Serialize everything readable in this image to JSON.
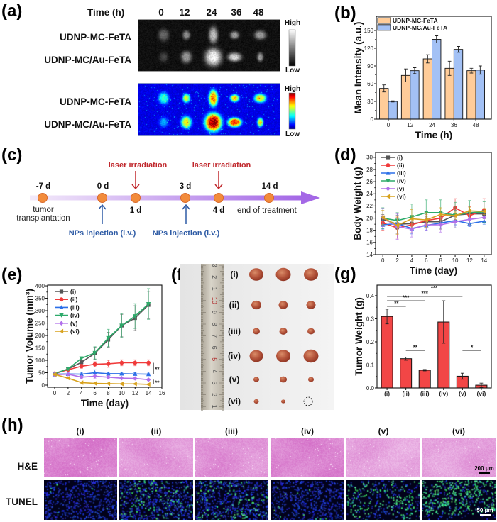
{
  "panels": {
    "a": {
      "label": "(a)",
      "time_label": "Time (h)",
      "times": [
        "0",
        "12",
        "24",
        "36",
        "48"
      ],
      "gray_rows": [
        "UDNP-MC-FeTA",
        "UDNP-MC/Au-FeTA"
      ],
      "color_rows": [
        "UDNP-MC-FeTA",
        "UDNP-MC/Au-FeTA"
      ],
      "gray_scale": {
        "high": "High",
        "low": "Low"
      },
      "color_scale": {
        "high": "High",
        "low": "Low"
      }
    },
    "b": {
      "label": "(b)"
    },
    "c": {
      "label": "(c)",
      "days_above": [
        "-7 d",
        "0 d",
        "3 d",
        "14 d"
      ],
      "days_below": [
        "1 d",
        "4 d"
      ],
      "laser": [
        "laser irradiation",
        "laser irradiation"
      ],
      "injection": [
        "NPs injection (i.v.)",
        "NPs injection (i.v.)"
      ],
      "start_note": [
        "tumor",
        "transplantation"
      ],
      "end_note": "end of treatment"
    },
    "d": {
      "label": "(d)"
    },
    "e": {
      "label": "(e)"
    },
    "f": {
      "label": "(f)",
      "groups": [
        "(i)",
        "(ii)",
        "(iii)",
        "(iv)",
        "(v)",
        "(vi)"
      ],
      "ruler": [
        "3",
        "2",
        "1",
        "10",
        "9",
        "8",
        "7",
        "6",
        "5",
        "4",
        "3",
        "2",
        "1"
      ]
    },
    "g": {
      "label": "(g)"
    },
    "h": {
      "label": "(h)",
      "columns": [
        "(i)",
        "(ii)",
        "(iii)",
        "(iv)",
        "(v)",
        "(vi)"
      ],
      "rows": [
        "H&E",
        "TUNEL"
      ],
      "scale_he": "200 μm",
      "scale_tunel": "50 μm"
    }
  },
  "chart_data": [
    {
      "type": "bar",
      "title": "",
      "xlabel": "Time (h)",
      "ylabel": "Mean Intensity (a.u.)",
      "categories": [
        "0",
        "12",
        "24",
        "36",
        "48"
      ],
      "series": [
        {
          "name": "UDNP-MC-FeTA",
          "color": "#FFCC99",
          "values": [
            52,
            74,
            102,
            86,
            82
          ],
          "errors": [
            6,
            11,
            7,
            12,
            4
          ]
        },
        {
          "name": "UDNP-MC/Au-FeTA",
          "color": "#A3C1F5",
          "values": [
            30,
            82,
            135,
            118,
            83
          ],
          "errors": [
            1,
            5,
            6,
            5,
            7
          ]
        }
      ],
      "yticks": [
        "0",
        "30",
        "60",
        "90",
        "120",
        "150"
      ],
      "ylim": [
        0,
        174
      ],
      "grid": false,
      "legend": "top-left"
    },
    {
      "type": "line",
      "title": "",
      "xlabel": "Time (day)",
      "ylabel": "Body Weight (g)",
      "x": [
        0,
        2,
        4,
        6,
        8,
        10,
        12,
        14
      ],
      "xticks": [
        "0",
        "2",
        "4",
        "6",
        "8",
        "10",
        "12",
        "14"
      ],
      "yticks": [
        "14",
        "16",
        "18",
        "20",
        "22",
        "24",
        "26",
        "28",
        "30"
      ],
      "xlim": [
        -1,
        15
      ],
      "ylim": [
        14,
        30.8
      ],
      "grid": false,
      "legend": "top-left",
      "series": [
        {
          "name": "(i)",
          "color": "#555555",
          "marker": "square",
          "values": [
            19.8,
            19.0,
            19.1,
            19.4,
            19.4,
            20.5,
            20.7,
            20.7
          ],
          "errors": [
            0.8,
            1.5,
            1.0,
            0.8,
            1.2,
            0.8,
            0.8,
            0.8
          ]
        },
        {
          "name": "(ii)",
          "color": "#F03A3A",
          "marker": "circle",
          "values": [
            19.2,
            18.4,
            18.9,
            19.6,
            20.0,
            21.7,
            20.4,
            21.3
          ],
          "errors": [
            1.2,
            1.7,
            1.3,
            1.0,
            1.0,
            1.5,
            1.5,
            1.9
          ]
        },
        {
          "name": "(iii)",
          "color": "#2B6FE8",
          "marker": "triangle-up",
          "values": [
            18.9,
            19.1,
            18.3,
            18.8,
            19.2,
            19.6,
            19.1,
            19.5
          ],
          "errors": [
            0.7,
            0.9,
            0.9,
            0.8,
            0.8,
            0.7,
            0.5,
            0.5
          ]
        },
        {
          "name": "(iv)",
          "color": "#2DAA6A",
          "marker": "triangle-down",
          "values": [
            20.0,
            19.6,
            20.2,
            20.9,
            20.9,
            20.5,
            20.9,
            21.0
          ],
          "errors": [
            1.7,
            1.3,
            2.1,
            2.1,
            2.1,
            2.1,
            2.0,
            1.7
          ]
        },
        {
          "name": "(v)",
          "color": "#B16FEA",
          "marker": "diamond",
          "values": [
            20.1,
            18.6,
            18.2,
            18.9,
            18.9,
            19.4,
            19.8,
            20.1
          ],
          "errors": [
            1.5,
            2.1,
            1.3,
            0.9,
            1.2,
            1.0,
            1.0,
            0.9
          ]
        },
        {
          "name": "(vi)",
          "color": "#D8A21E",
          "marker": "triangle-left",
          "values": [
            20.1,
            18.8,
            19.9,
            19.7,
            20.6,
            20.4,
            21.2,
            21.1
          ],
          "errors": [
            1.2,
            1.5,
            1.5,
            1.2,
            1.1,
            0.6,
            0.6,
            0.5
          ]
        }
      ]
    },
    {
      "type": "line",
      "title": "",
      "xlabel": "Time (day)",
      "ylabel": "Tumor Volume (mm³)",
      "x": [
        0,
        2,
        4,
        6,
        8,
        10,
        12,
        14
      ],
      "xticks": [
        "0",
        "2",
        "4",
        "6",
        "8",
        "10",
        "12",
        "14",
        "16"
      ],
      "yticks": [
        "0",
        "50",
        "100",
        "150",
        "200",
        "250",
        "300",
        "350",
        "400"
      ],
      "xlim": [
        -1.06,
        16
      ],
      "ylim": [
        -8.6,
        403
      ],
      "grid": false,
      "legend": "top-left",
      "series": [
        {
          "name": "(i)",
          "color": "#555555",
          "marker": "square",
          "values": [
            45,
            65,
            92,
            128,
            183,
            240,
            270,
            323
          ],
          "errors": [
            5,
            5,
            8,
            25,
            30,
            45,
            50,
            55
          ]
        },
        {
          "name": "(ii)",
          "color": "#F03A3A",
          "marker": "circle",
          "values": [
            47,
            62,
            76,
            84,
            86,
            90,
            90,
            90
          ],
          "errors": [
            4,
            5,
            8,
            10,
            14,
            12,
            12,
            12
          ]
        },
        {
          "name": "(iii)",
          "color": "#2B6FE8",
          "marker": "triangle-up",
          "values": [
            44,
            45,
            44,
            50,
            46,
            46,
            45,
            44
          ],
          "errors": [
            8,
            4,
            5,
            12,
            5,
            5,
            5,
            4
          ]
        },
        {
          "name": "(iv)",
          "color": "#2DAA6A",
          "marker": "triangle-down",
          "values": [
            47,
            65,
            108,
            130,
            190,
            240,
            278,
            327
          ],
          "errors": [
            4,
            5,
            6,
            25,
            35,
            48,
            50,
            62
          ]
        },
        {
          "name": "(v)",
          "color": "#B16FEA",
          "marker": "diamond",
          "values": [
            42,
            44,
            32,
            36,
            32,
            28,
            27,
            22
          ],
          "errors": [
            8,
            4,
            6,
            8,
            5,
            4,
            5,
            4
          ]
        },
        {
          "name": "(vi)",
          "color": "#D8A21E",
          "marker": "triangle-left",
          "values": [
            43,
            28,
            10,
            7,
            6,
            5,
            5,
            3
          ],
          "errors": [
            4,
            3,
            2,
            2,
            2,
            2,
            2,
            2
          ]
        }
      ],
      "significance": [
        {
          "between": [
            "(ii)",
            "(iii)"
          ],
          "label": "**"
        },
        {
          "between": [
            "(v)",
            "(vi)"
          ],
          "label": "**"
        }
      ]
    },
    {
      "type": "bar",
      "title": "",
      "xlabel": "",
      "ylabel": "Tumor Weight (g)",
      "categories": [
        "(i)",
        "(ii)",
        "(iii)",
        "(iv)",
        "(v)",
        "(vi)"
      ],
      "values": [
        0.31,
        0.127,
        0.077,
        0.286,
        0.051,
        0.012
      ],
      "errors": [
        0.032,
        0.007,
        0.003,
        0.092,
        0.013,
        0.009
      ],
      "color": "#F24646",
      "yticks": [
        "0.0",
        "0.1",
        "0.2",
        "0.3",
        "0.4"
      ],
      "ylim": [
        0,
        0.446
      ],
      "grid": false,
      "significance": [
        {
          "from": "(i)",
          "to": "(vi)",
          "y": 0.42,
          "label": "***"
        },
        {
          "from": "(i)",
          "to": "(v)",
          "y": 0.397,
          "label": "***"
        },
        {
          "from": "(i)",
          "to": "(iii)",
          "y": 0.378,
          "label": "***"
        },
        {
          "from": "(i)",
          "to": "(ii)",
          "y": 0.354,
          "label": "**"
        },
        {
          "from": "(ii)",
          "to": "(iii)",
          "y": 0.163,
          "label": "**"
        },
        {
          "from": "(v)",
          "to": "(vi)",
          "y": 0.163,
          "label": "*"
        }
      ]
    }
  ]
}
